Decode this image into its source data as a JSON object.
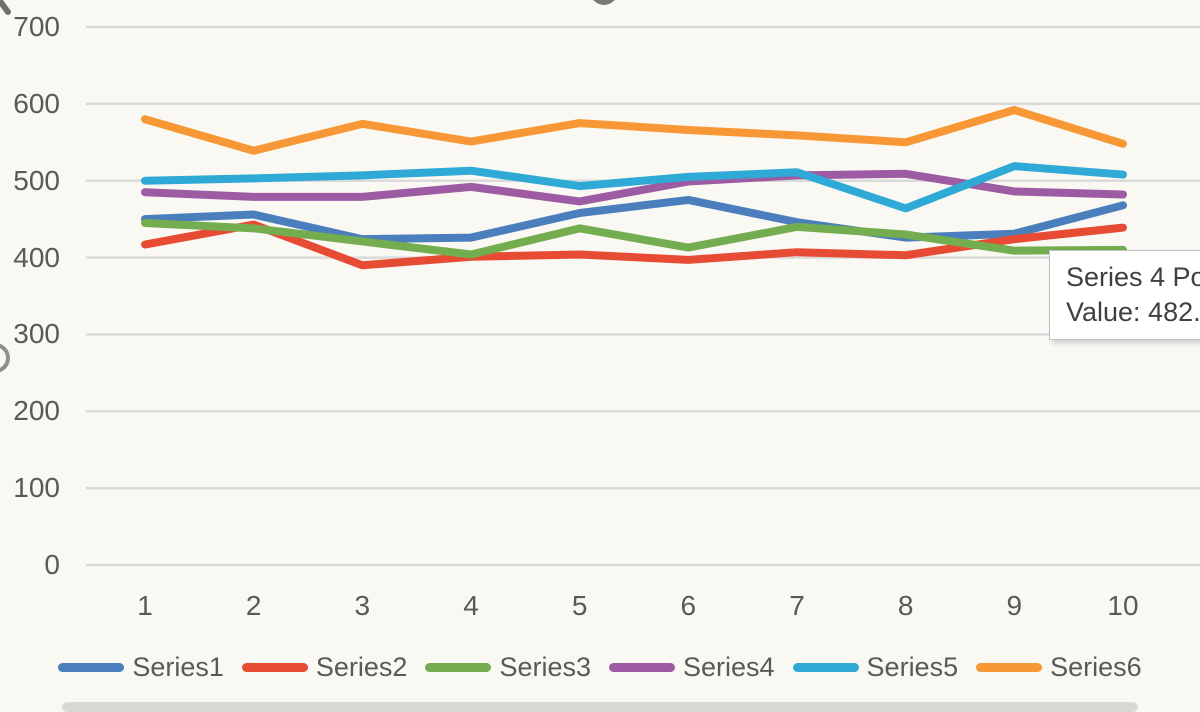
{
  "chart_data": {
    "type": "line",
    "x_labels": [
      "1",
      "2",
      "3",
      "4",
      "5",
      "6",
      "7",
      "8",
      "9",
      "10"
    ],
    "y_ticks": [
      "700",
      "600",
      "500",
      "400",
      "300",
      "200",
      "100",
      "0"
    ],
    "ylim": [
      0,
      700
    ],
    "grid": "horizontal",
    "gridline_color": "#dadada",
    "legend_position": "bottom",
    "series": [
      {
        "name": "Series1",
        "color": "#4a7ebd",
        "values": [
          450,
          456,
          424,
          426,
          458,
          475,
          446,
          426,
          431,
          468
        ]
      },
      {
        "name": "Series2",
        "color": "#e74b34",
        "values": [
          417,
          443,
          390,
          401,
          404,
          397,
          407,
          403,
          424,
          439
        ]
      },
      {
        "name": "Series3",
        "color": "#74ad4f",
        "values": [
          445,
          438,
          421,
          404,
          438,
          413,
          440,
          430,
          409,
          410
        ]
      },
      {
        "name": "Series4",
        "color": "#9c5ba3",
        "values": [
          485,
          479,
          479,
          492,
          473,
          499,
          507,
          509,
          486,
          482
        ]
      },
      {
        "name": "Series5",
        "color": "#2faad6",
        "values": [
          500,
          503,
          507,
          513,
          493,
          505,
          511,
          464,
          519,
          508
        ]
      },
      {
        "name": "Series6",
        "color": "#f79735",
        "values": [
          580,
          539,
          574,
          551,
          575,
          566,
          559,
          550,
          592,
          548
        ]
      }
    ]
  },
  "tooltip": {
    "series_label": "Series 4 Po",
    "value_label": "Value: 482."
  },
  "colors": {
    "background": "#faf8f3",
    "axis_text": "#595959",
    "tooltip_border": "#bfbfbf",
    "tooltip_text": "#404040"
  }
}
